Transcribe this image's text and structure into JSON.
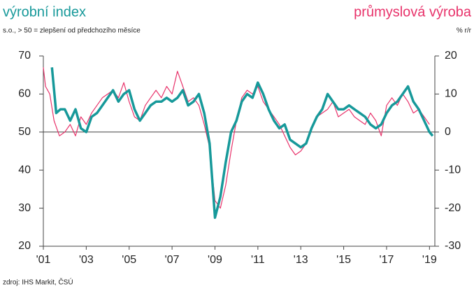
{
  "chart_data": {
    "type": "line",
    "subtitle": "s.o., > 50 = zlepšení od předchozího měsíce",
    "y2label": "% r/r",
    "source": "zdroj: IHS Markit, ČSÚ",
    "xlim": [
      2001,
      2019.25
    ],
    "xticks": [
      {
        "value": 2001,
        "label": "'01"
      },
      {
        "value": 2003,
        "label": "'03"
      },
      {
        "value": 2005,
        "label": "'05"
      },
      {
        "value": 2007,
        "label": "'07"
      },
      {
        "value": 2009,
        "label": "'09"
      },
      {
        "value": 2011,
        "label": "'11"
      },
      {
        "value": 2013,
        "label": "'13"
      },
      {
        "value": 2015,
        "label": "'15"
      },
      {
        "value": 2017,
        "label": "'17"
      },
      {
        "value": 2019,
        "label": "'19"
      }
    ],
    "ylim": [
      20,
      70
    ],
    "yticks": [
      20,
      30,
      40,
      50,
      60,
      70
    ],
    "y2lim": [
      -30,
      20
    ],
    "y2ticks": [
      -30,
      -20,
      -10,
      0,
      10,
      20
    ],
    "hline": 50,
    "series": [
      {
        "name": "výrobní index",
        "color": "#17999a",
        "x": [
          2001.4,
          2001.6,
          2001.8,
          2002.0,
          2002.25,
          2002.5,
          2002.75,
          2003.0,
          2003.25,
          2003.5,
          2003.75,
          2004.0,
          2004.25,
          2004.5,
          2004.75,
          2005.0,
          2005.25,
          2005.5,
          2005.75,
          2006.0,
          2006.25,
          2006.5,
          2006.75,
          2007.0,
          2007.25,
          2007.5,
          2007.75,
          2008.0,
          2008.25,
          2008.5,
          2008.75,
          2009.0,
          2009.25,
          2009.5,
          2009.75,
          2010.0,
          2010.25,
          2010.5,
          2010.75,
          2011.0,
          2011.25,
          2011.5,
          2011.75,
          2012.0,
          2012.25,
          2012.5,
          2012.75,
          2013.0,
          2013.25,
          2013.5,
          2013.75,
          2014.0,
          2014.25,
          2014.5,
          2014.75,
          2015.0,
          2015.25,
          2015.5,
          2015.75,
          2016.0,
          2016.25,
          2016.5,
          2016.75,
          2017.0,
          2017.25,
          2017.5,
          2017.75,
          2018.0,
          2018.25,
          2018.5,
          2018.75,
          2019.0,
          2019.15
        ],
        "values": [
          67,
          55,
          56,
          56,
          53,
          56,
          51,
          50,
          54,
          55,
          57,
          59,
          61,
          58,
          60,
          61,
          56,
          53,
          55,
          57,
          58,
          58,
          59,
          58,
          59,
          61,
          57,
          58,
          60,
          55,
          47,
          27.5,
          33,
          42,
          50,
          53,
          58,
          60,
          59,
          63,
          60,
          56,
          53,
          51,
          52,
          48,
          47,
          46,
          47,
          51,
          54,
          56,
          60,
          58,
          56,
          56,
          57,
          56,
          55,
          54,
          52,
          51,
          52,
          55,
          57,
          58,
          60,
          62,
          58,
          56,
          53,
          50,
          49
        ]
      },
      {
        "name": "průmyslová výroba",
        "color": "#e8336b",
        "axis": "y2",
        "x": [
          2001.0,
          2001.1,
          2001.3,
          2001.5,
          2001.75,
          2002.0,
          2002.25,
          2002.5,
          2002.75,
          2003.0,
          2003.25,
          2003.5,
          2003.75,
          2004.0,
          2004.25,
          2004.5,
          2004.75,
          2005.0,
          2005.25,
          2005.5,
          2005.75,
          2006.0,
          2006.25,
          2006.5,
          2006.75,
          2007.0,
          2007.25,
          2007.5,
          2007.75,
          2008.0,
          2008.25,
          2008.5,
          2008.75,
          2009.0,
          2009.25,
          2009.5,
          2009.75,
          2010.0,
          2010.25,
          2010.5,
          2010.75,
          2011.0,
          2011.25,
          2011.5,
          2011.75,
          2012.0,
          2012.25,
          2012.5,
          2012.75,
          2013.0,
          2013.25,
          2013.5,
          2013.75,
          2014.0,
          2014.25,
          2014.5,
          2014.75,
          2015.0,
          2015.25,
          2015.5,
          2015.75,
          2016.0,
          2016.25,
          2016.5,
          2016.75,
          2017.0,
          2017.25,
          2017.5,
          2017.75,
          2018.0,
          2018.25,
          2018.5,
          2018.75,
          2019.0
        ],
        "values": [
          17,
          12,
          10,
          3,
          -1,
          0,
          2,
          -1,
          4,
          2,
          5,
          7,
          9,
          10,
          11,
          9,
          13,
          8,
          4,
          3,
          7,
          9,
          11,
          9,
          12,
          10,
          16,
          12,
          8,
          9,
          7,
          2,
          -4,
          -18,
          -20,
          -14,
          -5,
          3,
          9,
          11,
          10,
          12,
          8,
          6,
          4,
          2,
          -1,
          -4,
          -6,
          -5,
          -3,
          1,
          4,
          5,
          6,
          8,
          4,
          5,
          6,
          4,
          3,
          2,
          5,
          3,
          -1,
          7,
          9,
          7,
          10,
          8,
          5,
          6,
          4,
          2
        ]
      }
    ]
  }
}
